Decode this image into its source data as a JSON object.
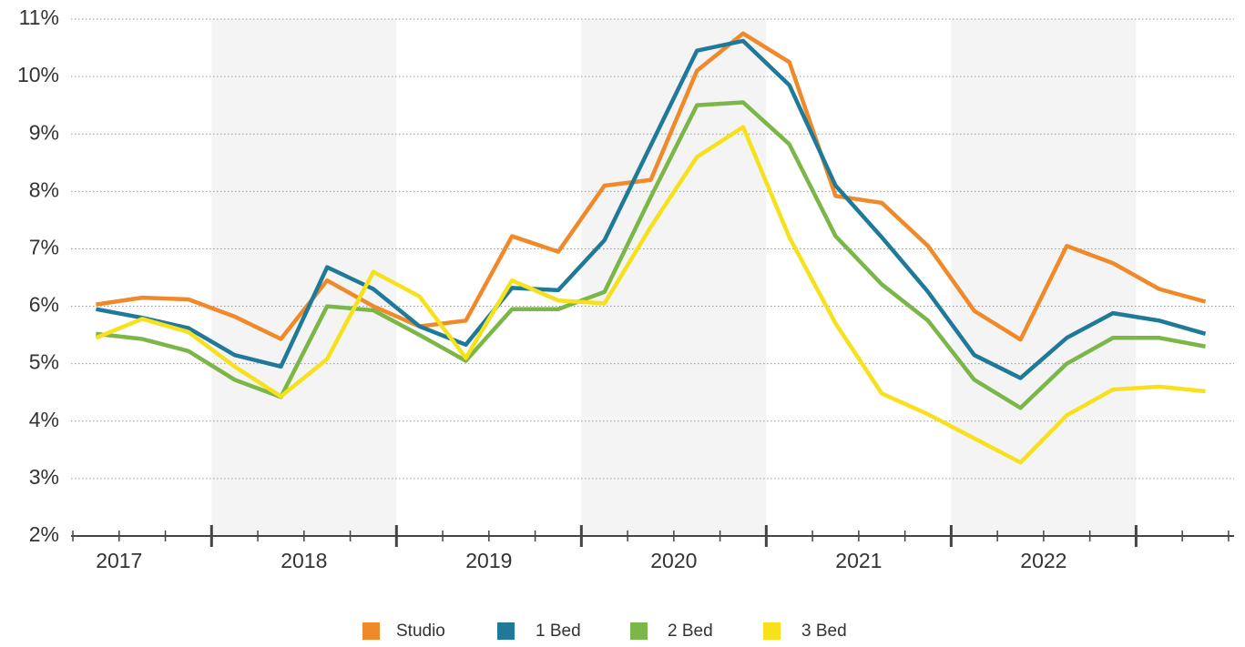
{
  "chart_data": {
    "type": "line",
    "x": [
      2017.375,
      2017.625,
      2017.875,
      2018.125,
      2018.375,
      2018.625,
      2018.875,
      2019.125,
      2019.375,
      2019.625,
      2019.875,
      2020.125,
      2020.375,
      2020.625,
      2020.875,
      2021.125,
      2021.375,
      2021.625,
      2021.875,
      2022.125,
      2022.375,
      2022.625,
      2022.875,
      2023.125,
      2023.375
    ],
    "series": [
      {
        "name": "Studio",
        "color": "#f0892a",
        "values": [
          6.03,
          6.15,
          6.12,
          5.82,
          5.43,
          6.45,
          6.0,
          5.65,
          5.75,
          7.22,
          6.95,
          8.1,
          8.2,
          10.1,
          10.75,
          10.25,
          7.92,
          7.8,
          7.05,
          5.92,
          5.42,
          7.05,
          6.75,
          6.3,
          6.08
        ]
      },
      {
        "name": "1 Bed",
        "color": "#1f7a99",
        "values": [
          5.95,
          5.8,
          5.62,
          5.15,
          4.95,
          6.68,
          6.3,
          5.65,
          5.33,
          6.32,
          6.28,
          7.15,
          8.8,
          10.45,
          10.62,
          9.85,
          8.1,
          7.2,
          6.25,
          5.15,
          4.75,
          5.45,
          5.88,
          5.75,
          5.52
        ]
      },
      {
        "name": "2 Bed",
        "color": "#7ab648",
        "values": [
          5.52,
          5.43,
          5.22,
          4.72,
          4.42,
          6.0,
          5.93,
          5.5,
          5.05,
          5.95,
          5.95,
          6.25,
          7.9,
          9.5,
          9.55,
          8.82,
          7.22,
          6.38,
          5.75,
          4.72,
          4.23,
          5.0,
          5.45,
          5.45,
          5.3
        ]
      },
      {
        "name": "3 Bed",
        "color": "#f7e01c",
        "values": [
          5.45,
          5.78,
          5.55,
          4.95,
          4.43,
          5.08,
          6.6,
          6.17,
          5.1,
          6.45,
          6.1,
          6.05,
          7.38,
          8.6,
          9.12,
          7.2,
          5.7,
          4.48,
          4.12,
          3.7,
          3.28,
          4.1,
          4.55,
          4.6,
          4.52
        ]
      }
    ],
    "xlim": [
      2017.24,
      2023.53
    ],
    "xticks": [
      {
        "value": 2017.5,
        "label": "2017"
      },
      {
        "value": 2018.5,
        "label": "2018"
      },
      {
        "value": 2019.5,
        "label": "2019"
      },
      {
        "value": 2020.5,
        "label": "2020"
      },
      {
        "value": 2021.5,
        "label": "2021"
      },
      {
        "value": 2022.5,
        "label": "2022"
      }
    ],
    "x_major_ticks": [
      2018,
      2019,
      2020,
      2021,
      2022,
      2023
    ],
    "x_minor_ticks": [
      2017.25,
      2017.5,
      2017.75,
      2018.25,
      2018.5,
      2018.75,
      2019.25,
      2019.5,
      2019.75,
      2020.25,
      2020.5,
      2020.75,
      2021.25,
      2021.5,
      2021.75,
      2022.25,
      2022.5,
      2022.75,
      2023.25,
      2023.5
    ],
    "shaded": [
      [
        2018,
        2019
      ],
      [
        2020,
        2021
      ],
      [
        2022,
        2023
      ]
    ],
    "ylim": [
      2,
      11
    ],
    "yticks": [
      {
        "value": 2,
        "label": "2%"
      },
      {
        "value": 3,
        "label": "3%"
      },
      {
        "value": 4,
        "label": "4%"
      },
      {
        "value": 5,
        "label": "5%"
      },
      {
        "value": 6,
        "label": "6%"
      },
      {
        "value": 7,
        "label": "7%"
      },
      {
        "value": 8,
        "label": "8%"
      },
      {
        "value": 9,
        "label": "9%"
      },
      {
        "value": 10,
        "label": "10%"
      },
      {
        "value": 11,
        "label": "11%"
      }
    ],
    "grid": true,
    "legend": "bottom"
  }
}
